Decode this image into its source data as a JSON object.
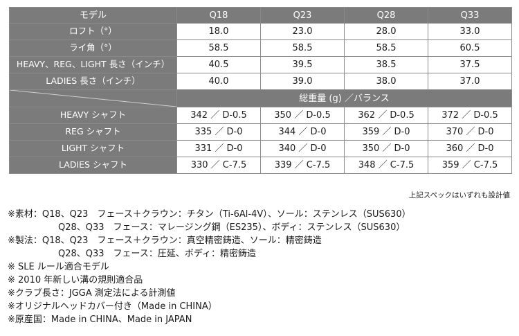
{
  "table": {
    "header": [
      "モデル",
      "Q18",
      "Q23",
      "Q28",
      "Q33"
    ],
    "spec_rows": [
      {
        "label": "ロフト（°）",
        "values": [
          "18.0",
          "23.0",
          "28.0",
          "33.0"
        ]
      },
      {
        "label": "ライ角（°）",
        "values": [
          "58.5",
          "58.5",
          "58.5",
          "60.5"
        ]
      },
      {
        "label": "HEAVY、REG、LIGHT 長さ（インチ）",
        "values": [
          "40.5",
          "39.5",
          "38.5",
          "37.5"
        ]
      },
      {
        "label": "LADIES 長さ（インチ）",
        "values": [
          "40.0",
          "39.0",
          "38.0",
          "37.0"
        ]
      }
    ],
    "weight_header": "総重量 (g) ／バランス",
    "shaft_rows": [
      {
        "label": "HEAVY シャフト",
        "values": [
          "342 ／ D-0.5",
          "350 ／ D-0.5",
          "362 ／ D-0.5",
          "372 ／ D-0.5"
        ]
      },
      {
        "label": "REG シャフト",
        "values": [
          "335 ／ D-0",
          "344 ／ D-0",
          "359 ／ D-0",
          "370 ／ D-0"
        ]
      },
      {
        "label": "LIGHT シャフト",
        "values": [
          "331 ／ D-0",
          "340 ／ D-0",
          "350 ／ D-0",
          "360 ／ D-0"
        ]
      },
      {
        "label": "LADIES シャフト",
        "values": [
          "330 ／ C-7.5",
          "339 ／ C-7.5",
          "348 ／ C-7.5",
          "359 ／ C-7.5"
        ]
      }
    ]
  },
  "design_note": "上記スペックはいずれも設計値",
  "notes": [
    "※素材：Q18、Q23　フェース＋クラウン：チタン（Ti-6Al-4V）、ソール：ステンレス（SUS630）",
    "Q28、Q33　フェース：マレージング鋼（ES235）、ボディ：ステンレス（SUS630）",
    "※製法：Q18、Q23　フェース＋クラウン：真空精密鋳造、ソール：精密鋳造",
    "Q28、Q33　フェース：圧延、ボディ：精密鋳造",
    "※ SLE ルール適合モデル",
    "※ 2010 年新しい溝の規則適合品",
    "※クラブ長さ：JGGA 測定法による計測値",
    "※オリジナルヘッドカバー付き（Made in CHINA）",
    "※原産国：Made in CHINA、Made in JAPAN"
  ]
}
